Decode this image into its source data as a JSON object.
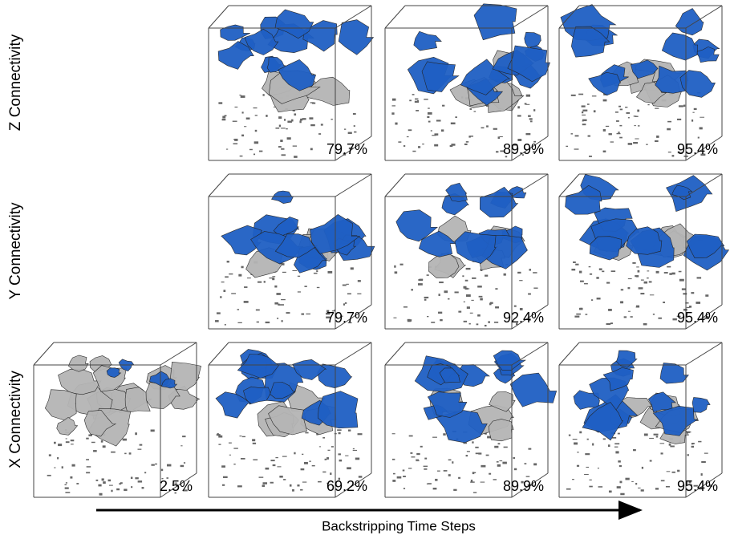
{
  "rows": [
    {
      "label": "Z Connectivity",
      "panels": [
        "79.7%",
        "89.9%",
        "95.4%"
      ]
    },
    {
      "label": "Y Connectivity",
      "panels": [
        "79.7%",
        "92.4%",
        "95.4%"
      ]
    },
    {
      "label": "X Connectivity",
      "panels": [
        "2.5%",
        "69.2%",
        "89.9%",
        "95.4%"
      ]
    }
  ],
  "axis_label": "Backstripping Time Steps"
}
